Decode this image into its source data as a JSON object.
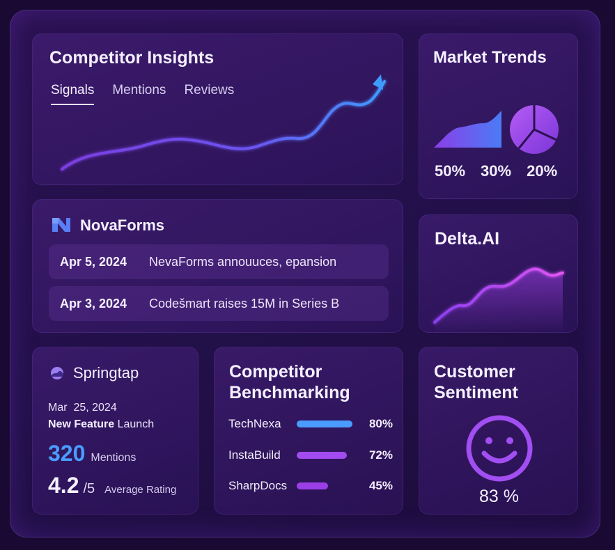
{
  "insights": {
    "title": "Competitor Insights",
    "tabs": [
      {
        "label": "Signals",
        "active": true
      },
      {
        "label": "Mentions",
        "active": false
      },
      {
        "label": "Reviews",
        "active": false
      }
    ]
  },
  "market_trends": {
    "title": "Market Trends",
    "percentages": [
      "50%",
      "30%",
      "20%"
    ]
  },
  "novaforms": {
    "name": "NovaForms",
    "news": [
      {
        "date": "Apr 5, 2024",
        "text": "NevaForms annouuces, epansion"
      },
      {
        "date": "Apr 3, 2024",
        "text": "Codešmart raises 15M in Series B"
      }
    ]
  },
  "delta": {
    "title": "Delta.AI"
  },
  "springtap": {
    "name": "Springtap",
    "date": "Mar  25, 2024",
    "feature_bold": "New Feature",
    "feature_rest": "Launch",
    "mentions_value": "320",
    "mentions_label": "Mentions",
    "rating_value": "4.2",
    "rating_denominator": "/5",
    "rating_label": "Average Rating"
  },
  "benchmarking": {
    "title": "Competitor Benchmarking",
    "rows": [
      {
        "name": "TechNexa",
        "percent": "80%",
        "value": 0.8,
        "color": "#4a9cff"
      },
      {
        "name": "InstaBuild",
        "percent": "72%",
        "value": 0.72,
        "color": "#a24bf0"
      },
      {
        "name": "SharpDocs",
        "percent": "45%",
        "value": 0.45,
        "color": "#9a3fe8"
      }
    ]
  },
  "sentiment": {
    "title": "Customer Sentiment",
    "percent": "83 %",
    "accent": "#a14ef2"
  },
  "colors": {
    "background": "#1a0a33",
    "accent_blue": "#4a9cff",
    "accent_purple": "#a24bf0"
  }
}
